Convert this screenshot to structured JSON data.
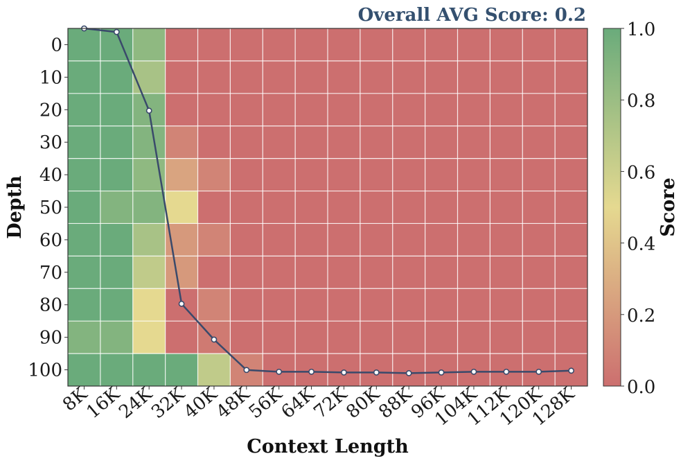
{
  "chart_data": {
    "type": "heatmap",
    "title": "Overall AVG Score: 0.2",
    "xlabel": "Context Length",
    "ylabel": "Depth",
    "x_tick_labels": [
      "8K",
      "16K",
      "24K",
      "32K",
      "40K",
      "48K",
      "56K",
      "64K",
      "72K",
      "80K",
      "88K",
      "96K",
      "104K",
      "112K",
      "120K",
      "128K"
    ],
    "y_tick_labels": [
      "0",
      "10",
      "20",
      "30",
      "40",
      "50",
      "60",
      "70",
      "80",
      "90",
      "100"
    ],
    "colorbar": {
      "label": "Score",
      "range": [
        0.0,
        1.0
      ],
      "tick_labels": [
        "0.0",
        "0.2",
        "0.4",
        "0.6",
        "0.8",
        "1.0"
      ],
      "colors": [
        "#cc6f6f",
        "#e5d990",
        "#6aab7b"
      ]
    },
    "grid": true,
    "values": [
      [
        1.0,
        1.0,
        0.85,
        0.0,
        0.0,
        0.0,
        0.0,
        0.0,
        0.0,
        0.0,
        0.0,
        0.0,
        0.0,
        0.0,
        0.0,
        0.0
      ],
      [
        1.0,
        1.0,
        0.75,
        0.0,
        0.0,
        0.0,
        0.0,
        0.0,
        0.0,
        0.0,
        0.0,
        0.0,
        0.0,
        0.0,
        0.0,
        0.0
      ],
      [
        1.0,
        1.0,
        0.9,
        0.0,
        0.0,
        0.0,
        0.0,
        0.0,
        0.0,
        0.0,
        0.0,
        0.0,
        0.0,
        0.0,
        0.0,
        0.0
      ],
      [
        1.0,
        1.0,
        0.9,
        0.1,
        0.0,
        0.0,
        0.0,
        0.0,
        0.0,
        0.0,
        0.0,
        0.0,
        0.0,
        0.0,
        0.0,
        0.0
      ],
      [
        1.0,
        1.0,
        0.85,
        0.25,
        0.1,
        0.0,
        0.0,
        0.0,
        0.0,
        0.0,
        0.0,
        0.0,
        0.0,
        0.0,
        0.0,
        0.0
      ],
      [
        1.0,
        0.9,
        0.9,
        0.5,
        0.0,
        0.0,
        0.0,
        0.0,
        0.0,
        0.0,
        0.0,
        0.0,
        0.0,
        0.0,
        0.0,
        0.0
      ],
      [
        1.0,
        1.0,
        0.75,
        0.2,
        0.1,
        0.0,
        0.0,
        0.0,
        0.0,
        0.0,
        0.0,
        0.0,
        0.0,
        0.0,
        0.0,
        0.0
      ],
      [
        1.0,
        1.0,
        0.65,
        0.2,
        0.0,
        0.0,
        0.0,
        0.0,
        0.0,
        0.0,
        0.0,
        0.0,
        0.0,
        0.0,
        0.0,
        0.0
      ],
      [
        1.0,
        1.0,
        0.5,
        0.0,
        0.1,
        0.0,
        0.0,
        0.0,
        0.0,
        0.0,
        0.0,
        0.0,
        0.0,
        0.0,
        0.0,
        0.0
      ],
      [
        0.9,
        0.9,
        0.5,
        0.0,
        0.05,
        0.0,
        0.0,
        0.0,
        0.0,
        0.0,
        0.0,
        0.0,
        0.0,
        0.0,
        0.0,
        0.0
      ],
      [
        1.0,
        1.0,
        1.0,
        1.0,
        0.65,
        0.1,
        0.0,
        0.0,
        0.0,
        0.0,
        0.0,
        0.0,
        0.0,
        0.0,
        0.0,
        0.0
      ]
    ],
    "line": {
      "color": "#3a4a6b",
      "values": [
        1.0,
        0.99,
        0.77,
        0.23,
        0.13,
        0.045,
        0.04,
        0.04,
        0.038,
        0.038,
        0.036,
        0.038,
        0.04,
        0.04,
        0.04,
        0.043
      ]
    }
  }
}
